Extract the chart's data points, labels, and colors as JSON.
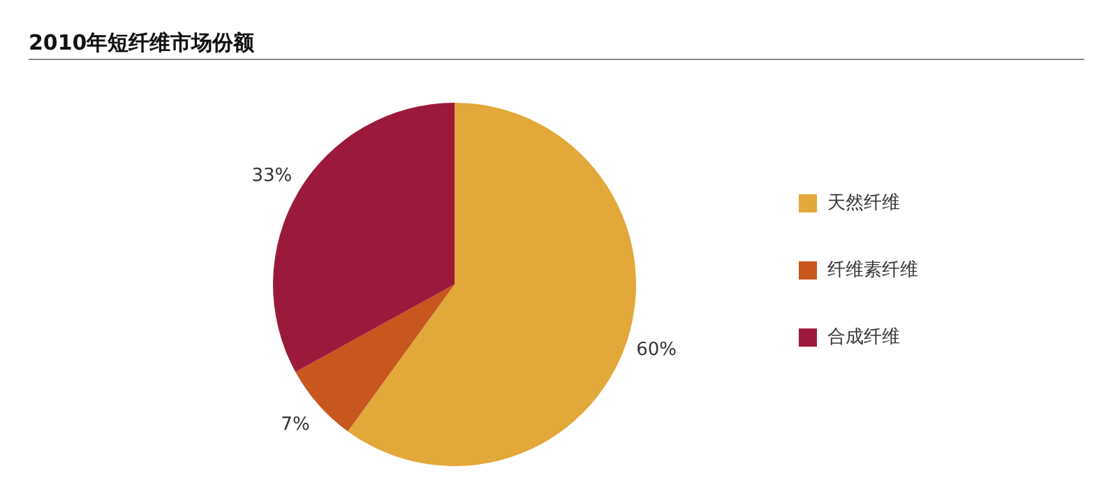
{
  "chart_data": {
    "type": "pie",
    "title": "2010年短纤维市场份额",
    "categories": [
      "天然纤维",
      "纤维素纤维",
      "合成纤维"
    ],
    "values": [
      60,
      7,
      33
    ],
    "colors": [
      "#e3a83a",
      "#c8561f",
      "#9b1a3b"
    ],
    "value_labels": [
      "60%",
      "7%",
      "33%"
    ],
    "legend": "right"
  }
}
